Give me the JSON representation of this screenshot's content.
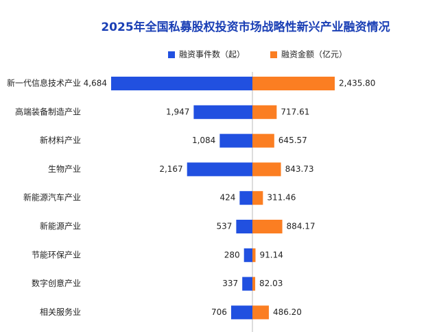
{
  "chart_data": {
    "type": "butterfly-bar",
    "title": "2025年全国私募股权投资市场战略性新兴产业融资情况",
    "categories": [
      "新一代信息技术产业",
      "高端装备制造产业",
      "新材料产业",
      "生物产业",
      "新能源汽车产业",
      "新能源产业",
      "节能环保产业",
      "数字创意产业",
      "相关服务业"
    ],
    "series": [
      {
        "name": "融资事件数（起）",
        "color": "#2150e0",
        "values": [
          4684,
          1947,
          1084,
          2167,
          424,
          537,
          280,
          337,
          706
        ],
        "value_labels": [
          "4,684",
          "1,947",
          "1,084",
          "2,167",
          "424",
          "537",
          "280",
          "337",
          "706"
        ]
      },
      {
        "name": "融资金额（亿元）",
        "color": "#fb7e22",
        "values": [
          2435.8,
          717.61,
          645.57,
          843.73,
          311.46,
          884.17,
          91.14,
          82.03,
          486.2
        ],
        "value_labels": [
          "2,435.80",
          "717.61",
          "645.57",
          "843.73",
          "311.46",
          "884.17",
          "91.14",
          "82.03",
          "486.20"
        ]
      }
    ]
  }
}
